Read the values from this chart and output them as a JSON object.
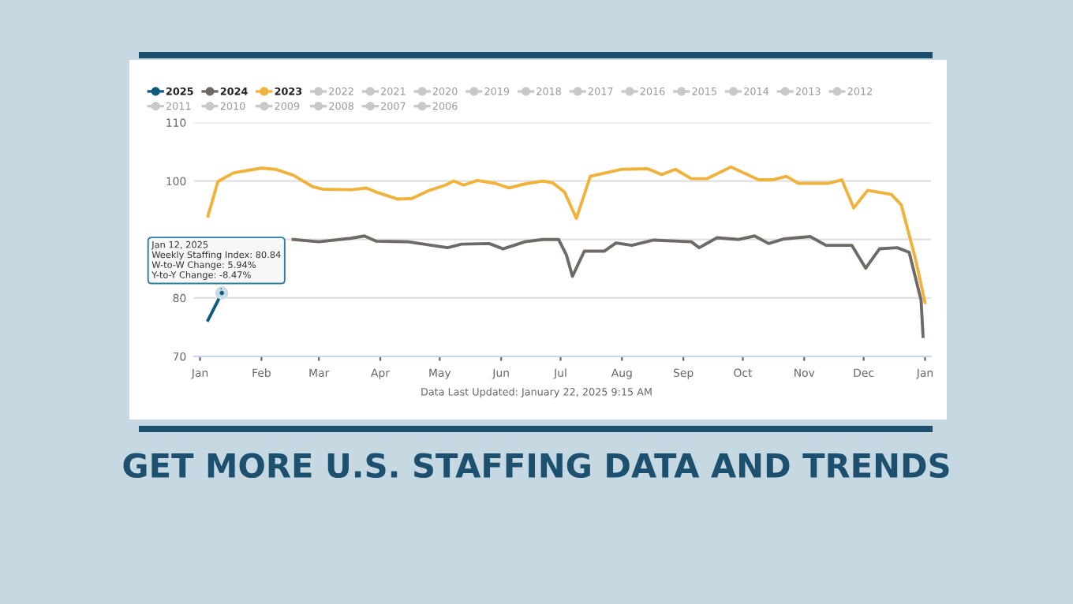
{
  "chart_data": {
    "type": "line",
    "xlim": [
      "2023-12-29",
      "2025-01-04"
    ],
    "xticks": [
      {
        "value": "2024-01-01",
        "label": "Jan"
      },
      {
        "value": "2024-02-01",
        "label": "Feb"
      },
      {
        "value": "2024-03-01",
        "label": "Mar"
      },
      {
        "value": "2024-04-01",
        "label": "Apr"
      },
      {
        "value": "2024-05-01",
        "label": "May"
      },
      {
        "value": "2024-06-01",
        "label": "Jun"
      },
      {
        "value": "2024-07-01",
        "label": "Jul"
      },
      {
        "value": "2024-08-01",
        "label": "Aug"
      },
      {
        "value": "2024-09-01",
        "label": "Sep"
      },
      {
        "value": "2024-10-01",
        "label": "Oct"
      },
      {
        "value": "2024-11-01",
        "label": "Nov"
      },
      {
        "value": "2024-12-01",
        "label": "Dec"
      },
      {
        "value": "2025-01-01",
        "label": "Jan"
      }
    ],
    "ylim": [
      70,
      110
    ],
    "yticks": [
      70,
      80,
      {
        "value": 90,
        "label": null
      },
      100,
      110
    ],
    "grid": "y",
    "legend": "top left",
    "line_style": "solid",
    "series": [
      {
        "name": "2025",
        "color": "#0f5a7c",
        "x": [
          "2024-01-05",
          "2024-01-12"
        ],
        "values": [
          76.2,
          80.84
        ]
      },
      {
        "name": "2024",
        "color": "#6e6a66",
        "x": [
          "2024-02-17",
          "2024-03-01",
          "2024-03-17",
          "2024-03-24",
          "2024-03-30",
          "2024-04-15",
          "2024-05-05",
          "2024-05-12",
          "2024-05-26",
          "2024-06-02",
          "2024-06-13",
          "2024-06-22",
          "2024-06-30",
          "2024-07-04",
          "2024-07-07",
          "2024-07-13",
          "2024-07-23",
          "2024-07-29",
          "2024-08-06",
          "2024-08-17",
          "2024-09-05",
          "2024-09-09",
          "2024-09-18",
          "2024-09-29",
          "2024-10-07",
          "2024-10-14",
          "2024-10-22",
          "2024-11-04",
          "2024-11-12",
          "2024-11-25",
          "2024-12-02",
          "2024-12-09",
          "2024-12-18",
          "2024-12-24",
          "2024-12-30",
          "2024-12-31"
        ],
        "values": [
          90.0,
          89.6,
          90.2,
          90.6,
          89.7,
          89.6,
          88.6,
          89.2,
          89.3,
          88.4,
          89.6,
          90.0,
          90.0,
          87.3,
          83.7,
          88.0,
          88.0,
          89.4,
          89.0,
          89.9,
          89.6,
          88.6,
          90.3,
          90.0,
          90.6,
          89.3,
          90.1,
          90.5,
          89.0,
          89.0,
          85.1,
          88.4,
          88.6,
          87.8,
          79.6,
          73.4
        ]
      },
      {
        "name": "2023",
        "color": "#f0b23a",
        "x": [
          "2024-01-05",
          "2024-01-10",
          "2024-01-18",
          "2024-02-01",
          "2024-02-08",
          "2024-02-17",
          "2024-02-27",
          "2024-03-03",
          "2024-03-17",
          "2024-03-25",
          "2024-03-30",
          "2024-04-10",
          "2024-04-17",
          "2024-04-25",
          "2024-05-04",
          "2024-05-08",
          "2024-05-13",
          "2024-05-20",
          "2024-05-29",
          "2024-06-05",
          "2024-06-13",
          "2024-06-22",
          "2024-06-27",
          "2024-07-03",
          "2024-07-09",
          "2024-07-13",
          "2024-07-16",
          "2024-07-24",
          "2024-08-01",
          "2024-08-14",
          "2024-08-21",
          "2024-08-28",
          "2024-09-05",
          "2024-09-13",
          "2024-09-25",
          "2024-10-09",
          "2024-10-16",
          "2024-10-23",
          "2024-10-29",
          "2024-11-13",
          "2024-11-20",
          "2024-11-26",
          "2024-12-03",
          "2024-12-15",
          "2024-12-20",
          "2024-12-27",
          "2025-01-01"
        ],
        "values": [
          94.0,
          99.9,
          101.4,
          102.2,
          102.0,
          101.0,
          99.0,
          98.6,
          98.5,
          98.8,
          98.1,
          96.9,
          97.0,
          98.3,
          99.3,
          100.0,
          99.3,
          100.1,
          99.6,
          98.8,
          99.5,
          100.0,
          99.7,
          98.1,
          93.6,
          97.7,
          100.8,
          101.4,
          102.0,
          102.1,
          101.1,
          102.0,
          100.4,
          100.4,
          102.4,
          100.2,
          100.2,
          100.8,
          99.6,
          99.6,
          100.2,
          95.4,
          98.4,
          97.7,
          95.9,
          86.9,
          79.2
        ]
      },
      {
        "name": "2022",
        "color": "#c8c8c8"
      },
      {
        "name": "2021",
        "color": "#c8c8c8"
      },
      {
        "name": "2020",
        "color": "#c8c8c8"
      },
      {
        "name": "2019",
        "color": "#c8c8c8"
      },
      {
        "name": "2018",
        "color": "#c8c8c8"
      },
      {
        "name": "2017",
        "color": "#c8c8c8"
      },
      {
        "name": "2016",
        "color": "#c8c8c8"
      },
      {
        "name": "2015",
        "color": "#c8c8c8"
      },
      {
        "name": "2014",
        "color": "#c8c8c8"
      },
      {
        "name": "2013",
        "color": "#c8c8c8"
      },
      {
        "name": "2012",
        "color": "#c8c8c8"
      },
      {
        "name": "2011",
        "color": "#c8c8c8"
      },
      {
        "name": "2010",
        "color": "#c8c8c8"
      },
      {
        "name": "2009",
        "color": "#c8c8c8"
      },
      {
        "name": "2008",
        "color": "#c8c8c8"
      },
      {
        "name": "2007",
        "color": "#c8c8c8"
      },
      {
        "name": "2006",
        "color": "#c8c8c8"
      }
    ],
    "annotations": [
      {
        "text": "Jan 12, 2025\nWeekly Staffing Index: 80.84\nW-to-W Change: 5.94%\nY-to-Y Change: -8.47%",
        "x": "2024-01-12",
        "y": 80.84
      },
      "Data Last Updated: January 22, 2025 9:15 AM",
      "GET MORE U.S. STAFFING DATA AND TRENDS"
    ]
  }
}
